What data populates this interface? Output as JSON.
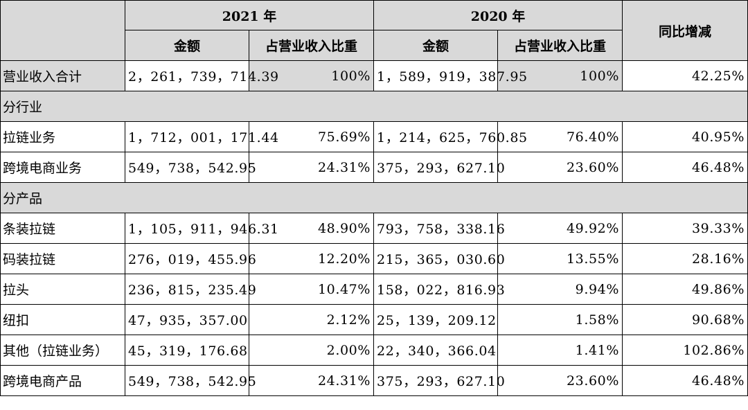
{
  "header": {
    "year_2021": "2021 年",
    "year_2020": "2020 年",
    "change": "同比增减",
    "amount": "金额",
    "share": "占营业收入比重"
  },
  "total": {
    "label": "营业收入合计",
    "amount_2021": "2，261，739，714.39",
    "share_2021": "100%",
    "amount_2020": "1，589，919，387.95",
    "share_2020": "100%",
    "change": "42.25%"
  },
  "sections": [
    {
      "title": "分行业",
      "rows": [
        {
          "label": "拉链业务",
          "amount_2021": "1，712，001，171.44",
          "share_2021": "75.69%",
          "amount_2020": "1，214，625，760.85",
          "share_2020": "76.40%",
          "change": "40.95%"
        },
        {
          "label": "跨境电商业务",
          "amount_2021": "549，738，542.95",
          "share_2021": "24.31%",
          "amount_2020": "375，293，627.10",
          "share_2020": "23.60%",
          "change": "46.48%"
        }
      ]
    },
    {
      "title": "分产品",
      "rows": [
        {
          "label": "条装拉链",
          "amount_2021": "1，105，911，946.31",
          "share_2021": "48.90%",
          "amount_2020": "793，758，338.16",
          "share_2020": "49.92%",
          "change": "39.33%"
        },
        {
          "label": "码装拉链",
          "amount_2021": "276，019，455.96",
          "share_2021": "12.20%",
          "amount_2020": "215，365，030.60",
          "share_2020": "13.55%",
          "change": "28.16%"
        },
        {
          "label": "拉头",
          "amount_2021": "236，815，235.49",
          "share_2021": "10.47%",
          "amount_2020": "158，022，816.93",
          "share_2020": "9.94%",
          "change": "49.86%"
        },
        {
          "label": "纽扣",
          "amount_2021": "47，935，357.00",
          "share_2021": "2.12%",
          "amount_2020": "25，139，209.12",
          "share_2020": "1.58%",
          "change": "90.68%"
        },
        {
          "label": "其他（拉链业务）",
          "amount_2021": "45，319，176.68",
          "share_2021": "2.00%",
          "amount_2020": "22，340，366.04",
          "share_2020": "1.41%",
          "change": "102.86%"
        },
        {
          "label": "跨境电商产品",
          "amount_2021": "549，738，542.95",
          "share_2021": "24.31%",
          "amount_2020": "375，293，627.10",
          "share_2020": "23.60%",
          "change": "46.48%"
        }
      ]
    }
  ]
}
